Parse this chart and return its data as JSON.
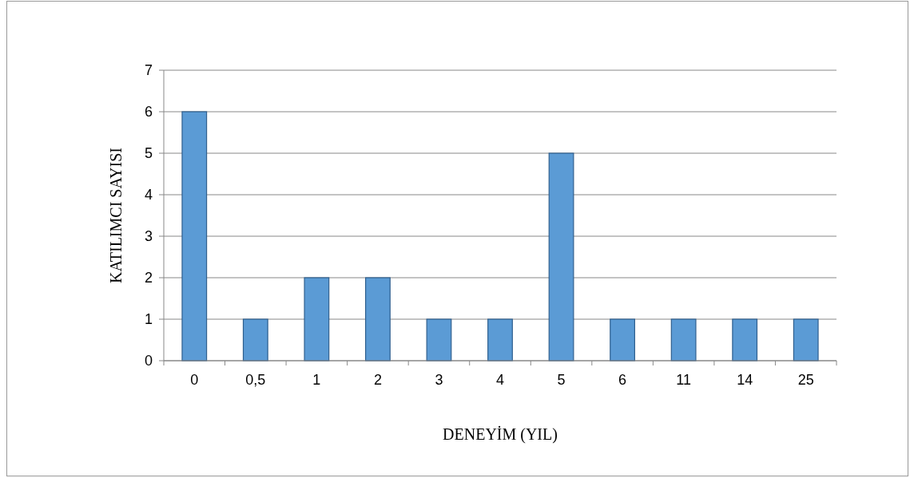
{
  "chart_data": {
    "type": "bar",
    "xlabel": "DENEYİM (YIL)",
    "ylabel": "KATILIMCI SAYISI",
    "categories": [
      "0",
      "0,5",
      "1",
      "2",
      "3",
      "4",
      "5",
      "6",
      "11",
      "14",
      "25"
    ],
    "values": [
      6,
      1,
      2,
      2,
      1,
      1,
      5,
      1,
      1,
      1,
      1
    ],
    "color": "#5b9bd5",
    "ylim": [
      0,
      7
    ],
    "yticks": [
      0,
      1,
      2,
      3,
      4,
      5,
      6,
      7
    ],
    "grid": "y"
  }
}
